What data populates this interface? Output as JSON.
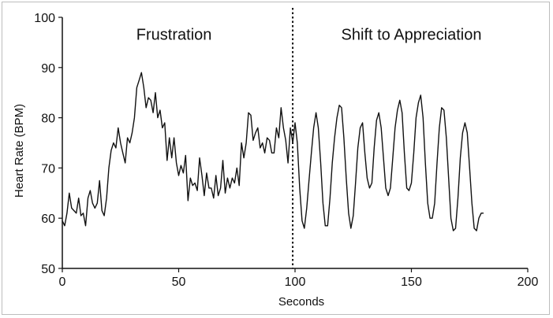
{
  "chart_data": {
    "type": "line",
    "xlabel": "Seconds",
    "ylabel": "Heart Rate (BPM)",
    "xlim": [
      0,
      200
    ],
    "ylim": [
      50,
      100
    ],
    "x_ticks": [
      0,
      50,
      100,
      150,
      200
    ],
    "y_ticks": [
      50,
      60,
      70,
      80,
      90,
      100
    ],
    "grid": false,
    "line_color": "#111111",
    "annotations": [
      {
        "text": "Frustration",
        "x": 48,
        "y": 95.5
      },
      {
        "text": "Shift to Appreciation",
        "x": 150,
        "y": 95.5
      }
    ],
    "divider": {
      "x": 99,
      "style": "dotted"
    },
    "series": [
      {
        "points": [
          [
            0,
            59.5
          ],
          [
            1,
            58.5
          ],
          [
            2,
            61
          ],
          [
            3,
            65
          ],
          [
            4,
            62
          ],
          [
            5,
            61.5
          ],
          [
            6,
            61
          ],
          [
            7,
            64
          ],
          [
            8,
            60.5
          ],
          [
            9,
            61
          ],
          [
            10,
            58.5
          ],
          [
            11,
            64
          ],
          [
            12,
            65.5
          ],
          [
            13,
            63
          ],
          [
            14,
            62
          ],
          [
            15,
            63
          ],
          [
            16,
            67.5
          ],
          [
            17,
            61.5
          ],
          [
            18,
            60.5
          ],
          [
            19,
            64
          ],
          [
            20,
            70
          ],
          [
            21,
            73.5
          ],
          [
            22,
            75
          ],
          [
            23,
            74
          ],
          [
            24,
            78
          ],
          [
            25,
            75
          ],
          [
            26,
            73
          ],
          [
            27,
            71
          ],
          [
            28,
            76
          ],
          [
            29,
            75
          ],
          [
            30,
            77
          ],
          [
            31,
            80
          ],
          [
            32,
            86
          ],
          [
            33,
            87.5
          ],
          [
            34,
            89
          ],
          [
            35,
            86
          ],
          [
            36,
            82
          ],
          [
            37,
            84
          ],
          [
            38,
            83.5
          ],
          [
            39,
            81
          ],
          [
            40,
            85
          ],
          [
            41,
            80
          ],
          [
            42,
            81.5
          ],
          [
            43,
            78
          ],
          [
            44,
            79
          ],
          [
            45,
            71.5
          ],
          [
            46,
            76
          ],
          [
            47,
            72
          ],
          [
            48,
            76
          ],
          [
            49,
            71
          ],
          [
            50,
            68.5
          ],
          [
            51,
            70.5
          ],
          [
            52,
            69
          ],
          [
            53,
            72.5
          ],
          [
            54,
            63.5
          ],
          [
            55,
            68
          ],
          [
            56,
            66.5
          ],
          [
            57,
            67
          ],
          [
            58,
            65.5
          ],
          [
            59,
            72
          ],
          [
            60,
            68.5
          ],
          [
            61,
            64.5
          ],
          [
            62,
            69
          ],
          [
            63,
            66
          ],
          [
            64,
            66
          ],
          [
            65,
            64
          ],
          [
            66,
            68.5
          ],
          [
            67,
            64.5
          ],
          [
            68,
            66
          ],
          [
            69,
            71.5
          ],
          [
            70,
            65
          ],
          [
            71,
            68
          ],
          [
            72,
            66
          ],
          [
            73,
            68
          ],
          [
            74,
            67
          ],
          [
            75,
            70
          ],
          [
            76,
            66.5
          ],
          [
            77,
            75
          ],
          [
            78,
            72
          ],
          [
            79,
            75
          ],
          [
            80,
            81
          ],
          [
            81,
            80.5
          ],
          [
            82,
            75.5
          ],
          [
            83,
            77
          ],
          [
            84,
            78
          ],
          [
            85,
            74
          ],
          [
            86,
            75
          ],
          [
            87,
            73
          ],
          [
            88,
            76
          ],
          [
            89,
            75.5
          ],
          [
            90,
            73
          ],
          [
            91,
            73
          ],
          [
            92,
            78
          ],
          [
            93,
            76
          ],
          [
            94,
            82
          ],
          [
            95,
            78
          ],
          [
            96,
            75.5
          ],
          [
            97,
            71
          ],
          [
            98,
            78
          ],
          [
            99,
            75
          ],
          [
            100,
            79
          ],
          [
            101,
            75
          ],
          [
            102,
            66
          ],
          [
            103,
            59.5
          ],
          [
            104,
            58
          ],
          [
            105,
            62
          ],
          [
            106,
            67.5
          ],
          [
            107,
            73
          ],
          [
            108,
            78
          ],
          [
            109,
            81
          ],
          [
            110,
            78
          ],
          [
            111,
            71
          ],
          [
            112,
            63
          ],
          [
            113,
            58.5
          ],
          [
            114,
            58.5
          ],
          [
            115,
            64
          ],
          [
            116,
            71
          ],
          [
            117,
            76
          ],
          [
            118,
            80
          ],
          [
            119,
            82.5
          ],
          [
            120,
            82
          ],
          [
            121,
            76
          ],
          [
            122,
            68
          ],
          [
            123,
            61
          ],
          [
            124,
            58
          ],
          [
            125,
            60.5
          ],
          [
            126,
            67
          ],
          [
            127,
            74
          ],
          [
            128,
            78
          ],
          [
            129,
            79
          ],
          [
            130,
            73
          ],
          [
            131,
            68
          ],
          [
            132,
            66
          ],
          [
            133,
            67
          ],
          [
            134,
            74
          ],
          [
            135,
            79.5
          ],
          [
            136,
            81
          ],
          [
            137,
            78
          ],
          [
            138,
            72
          ],
          [
            139,
            66
          ],
          [
            140,
            64.5
          ],
          [
            141,
            66
          ],
          [
            142,
            72
          ],
          [
            143,
            78
          ],
          [
            144,
            81.5
          ],
          [
            145,
            83.5
          ],
          [
            146,
            81
          ],
          [
            147,
            73
          ],
          [
            148,
            66
          ],
          [
            149,
            65.5
          ],
          [
            150,
            67
          ],
          [
            151,
            73
          ],
          [
            152,
            80
          ],
          [
            153,
            83
          ],
          [
            154,
            84.5
          ],
          [
            155,
            80
          ],
          [
            156,
            71
          ],
          [
            157,
            63
          ],
          [
            158,
            60
          ],
          [
            159,
            60
          ],
          [
            160,
            63
          ],
          [
            161,
            71
          ],
          [
            162,
            78
          ],
          [
            163,
            82
          ],
          [
            164,
            81.5
          ],
          [
            165,
            76
          ],
          [
            166,
            68
          ],
          [
            167,
            60
          ],
          [
            168,
            57.5
          ],
          [
            169,
            58
          ],
          [
            170,
            64
          ],
          [
            171,
            72
          ],
          [
            172,
            77
          ],
          [
            173,
            79
          ],
          [
            174,
            77
          ],
          [
            175,
            70
          ],
          [
            176,
            63
          ],
          [
            177,
            58
          ],
          [
            178,
            57.5
          ],
          [
            179,
            60
          ],
          [
            180,
            61
          ],
          [
            181,
            61
          ]
        ]
      }
    ]
  }
}
